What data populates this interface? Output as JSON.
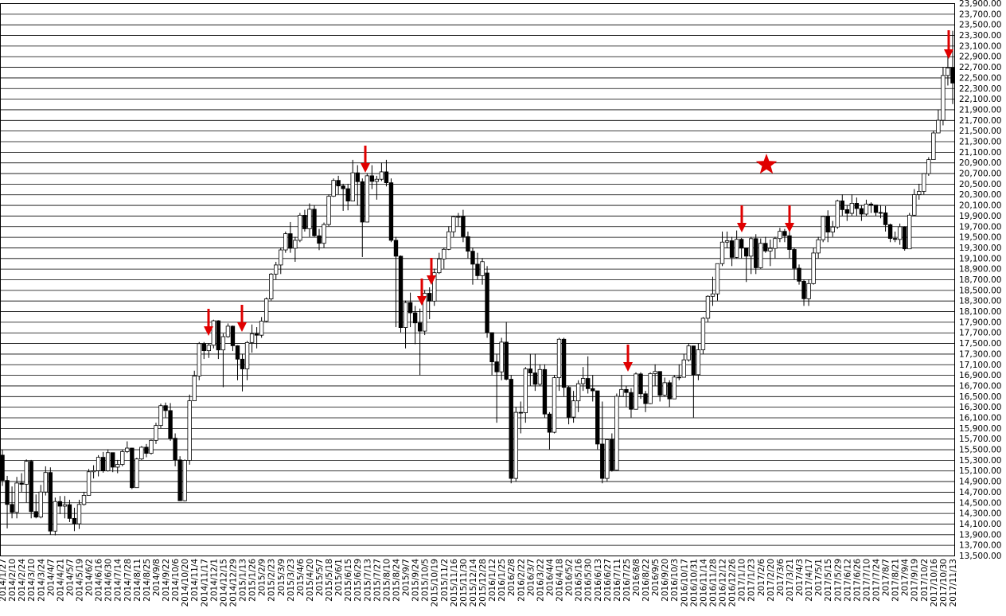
{
  "chart_data": {
    "type": "candlestick",
    "categories": [
      "2014/1/27",
      null,
      "2014/2/10",
      null,
      "2014/2/24",
      null,
      "2014/3/10",
      null,
      "2014/3/24",
      null,
      "2014/4/7",
      null,
      "2014/4/21",
      null,
      "2014/5/7",
      null,
      "2014/5/19",
      null,
      "2014/6/2",
      null,
      "2014/6/16",
      null,
      "2014/6/30",
      null,
      "2014/7/14",
      null,
      "2014/7/28",
      null,
      "2014/8/11",
      null,
      "2014/8/25",
      null,
      "2014/9/8",
      null,
      "2014/9/22",
      null,
      "2014/10/6",
      null,
      "2014/10/20",
      null,
      "2014/11/4",
      null,
      "2014/11/17",
      null,
      "2014/12/1",
      null,
      "2014/12/15",
      null,
      "2014/12/29",
      null,
      "2015/1/13",
      null,
      "2015/1/26",
      null,
      "2015/2/9",
      null,
      "2015/2/23",
      null,
      "2015/3/9",
      null,
      "2015/3/23",
      null,
      "2015/4/6",
      null,
      "2015/4/20",
      null,
      "2015/5/7",
      null,
      "2015/5/18",
      null,
      "2015/6/1",
      null,
      "2015/6/15",
      null,
      "2015/6/29",
      null,
      "2015/7/13",
      null,
      "2015/7/27",
      null,
      "2015/8/10",
      null,
      "2015/8/24",
      null,
      "2015/9/7",
      null,
      "2015/9/24",
      null,
      "2015/10/5",
      null,
      "2015/10/19",
      null,
      "2015/11/2",
      null,
      "2015/11/16",
      null,
      "2015/11/30",
      null,
      "2015/12/14",
      null,
      "2015/12/28",
      null,
      "2016/1/12",
      null,
      "2016/1/25",
      null,
      "2016/2/8",
      null,
      "2016/2/22",
      null,
      "2016/3/7",
      null,
      "2016/3/22",
      null,
      "2016/4/4",
      null,
      "2016/4/18",
      null,
      "2016/5/2",
      null,
      "2016/5/16",
      null,
      "2016/5/30",
      null,
      "2016/6/13",
      null,
      "2016/6/27",
      null,
      "2016/7/11",
      null,
      "2016/7/25",
      null,
      "2016/8/8",
      null,
      "2016/8/22",
      null,
      "2016/9/5",
      null,
      "2016/9/20",
      null,
      "2016/10/3",
      null,
      "2016/10/17",
      null,
      "2016/10/31",
      null,
      "2016/11/14",
      null,
      "2016/11/28",
      null,
      "2016/12/12",
      null,
      "2016/12/26",
      null,
      "2017/1/10",
      null,
      "2017/1/23",
      null,
      "2017/2/6",
      null,
      "2017/2/20",
      null,
      "2017/3/6",
      null,
      "2017/3/21",
      null,
      "2017/4/3",
      null,
      "2017/4/17",
      null,
      "2017/5/1",
      null,
      "2017/5/15",
      null,
      "2017/5/29",
      null,
      "2017/6/12",
      null,
      "2017/6/26",
      null,
      "2017/7/10",
      null,
      "2017/7/24",
      null,
      "2017/8/7",
      null,
      "2017/8/21",
      null,
      "2017/9/4",
      null,
      "2017/9/19",
      null,
      "2017/10/2",
      null,
      "2017/10/16",
      null,
      "2017/10/30",
      null,
      "2017/11/13"
    ],
    "open": [
      15390,
      14914,
      14462,
      14313,
      14865,
      14841,
      15274,
      14327,
      14224,
      14696,
      15063,
      13960,
      14516,
      14429,
      14458,
      14199,
      14097,
      14462,
      14632,
      15077,
      15097,
      15349,
      15095,
      15437,
      15164,
      15215,
      15457,
      15523,
      14778,
      15318,
      15539,
      15424,
      15668,
      15948,
      16321,
      16229,
      15708,
      15300,
      14532,
      15291,
      16413,
      16880,
      17490,
      17357,
      17459,
      17920,
      17371,
      17621,
      17818,
      17450,
      17197,
      17014,
      17511,
      17674,
      17648,
      17913,
      18332,
      18798,
      18971,
      19254,
      19560,
      19285,
      19435,
      19907,
      19652,
      20020,
      19520,
      19379,
      19732,
      20264,
      20563,
      20460,
      20407,
      20174,
      20706,
      20539,
      19779,
      20650,
      20544,
      20585,
      20724,
      20519,
      19435,
      19136,
      17792,
      18264,
      18070,
      17880,
      17725,
      18438,
      18291,
      18825,
      19083,
      19265,
      19596,
      19879,
      19883,
      19504,
      19230,
      18986,
      18769,
      18820,
      17697,
      17147,
      16958,
      17518,
      16819,
      14952,
      16196,
      16188,
      17014,
      16938,
      16724,
      17002,
      16164,
      15821,
      16848,
      17572,
      16666,
      16106,
      16412,
      16736,
      16834,
      16642,
      16601,
      15599,
      14952,
      15682,
      15106,
      16497,
      16627,
      16569,
      16254,
      16919,
      16545,
      16360,
      16925,
      16965,
      16519,
      16754,
      16449,
      16860,
      16856,
      17184,
      17446,
      16905,
      17374,
      17967,
      18381,
      18426,
      18996,
      19401,
      19427,
      19114,
      19454,
      19287,
      19137,
      19467,
      18918,
      19378,
      19234,
      19283,
      19469,
      19604,
      19521,
      19262,
      18909,
      18665,
      18335,
      18620,
      19196,
      19445,
      19883,
      19590,
      19686,
      20177,
      20013,
      19943,
      20132,
      20033,
      19929,
      20118,
      20099,
      19959,
      19952,
      19729,
      19470,
      19452,
      19691,
      19274,
      19909,
      20296,
      20356,
      20690,
      20954,
      21457,
      21696,
      22539,
      22681
    ],
    "high": [
      15490,
      15000,
      14800,
      14980,
      15050,
      15310,
      15300,
      14650,
      14830,
      15180,
      15160,
      14590,
      14620,
      14620,
      14550,
      14400,
      14550,
      14700,
      15130,
      15200,
      15390,
      15450,
      15500,
      15440,
      15300,
      15490,
      15650,
      15530,
      15340,
      15560,
      15600,
      15680,
      16000,
      16360,
      16380,
      16370,
      15800,
      15370,
      15310,
      16530,
      16980,
      17520,
      17520,
      17500,
      17940,
      17930,
      17680,
      17870,
      17830,
      17460,
      17300,
      17540,
      17850,
      17800,
      17990,
      18360,
      18820,
      19030,
      19300,
      19600,
      19780,
      19500,
      19950,
      20010,
      20130,
      20090,
      19650,
      19770,
      20300,
      20600,
      20650,
      20500,
      20500,
      20950,
      20850,
      20600,
      20700,
      20850,
      20650,
      20900,
      20950,
      20600,
      19500,
      19150,
      18300,
      18450,
      18200,
      18150,
      18500,
      18550,
      18900,
      19200,
      19300,
      19700,
      19900,
      19950,
      20010,
      19600,
      19300,
      19200,
      19100,
      18950,
      17700,
      17300,
      17600,
      17900,
      16900,
      16300,
      16400,
      17050,
      17300,
      17300,
      17100,
      17100,
      16200,
      16900,
      17600,
      17600,
      16700,
      16600,
      16800,
      17050,
      17250,
      16900,
      16600,
      16400,
      15700,
      15800,
      16550,
      16900,
      16700,
      16650,
      16950,
      16950,
      16600,
      16950,
      17100,
      16970,
      16850,
      16800,
      16900,
      17100,
      17300,
      17500,
      17450,
      17500,
      17990,
      18400,
      18750,
      19000,
      19600,
      19600,
      19500,
      19620,
      19480,
      19300,
      19500,
      19550,
      19470,
      19500,
      19450,
      19500,
      19670,
      19650,
      19600,
      19300,
      18980,
      18700,
      18700,
      19300,
      19500,
      19900,
      20000,
      19800,
      20200,
      20300,
      20100,
      20300,
      20240,
      20100,
      20200,
      20150,
      20100,
      20100,
      20080,
      19750,
      19600,
      19750,
      19700,
      19950,
      20400,
      20500,
      20700,
      21000,
      21500,
      21900,
      22700,
      23000,
      23380
    ],
    "low": [
      14810,
      14010,
      14200,
      14200,
      14700,
      14500,
      14200,
      14200,
      14200,
      14630,
      13890,
      13880,
      14280,
      14200,
      14130,
      13960,
      14000,
      14440,
      14630,
      14950,
      14990,
      15060,
      15080,
      15070,
      15050,
      15180,
      15430,
      14750,
      14780,
      15300,
      15350,
      15400,
      15600,
      15900,
      16100,
      15660,
      15180,
      14530,
      14520,
      15210,
      16410,
      16800,
      17200,
      17220,
      17400,
      17200,
      16670,
      17600,
      17350,
      16800,
      16590,
      16800,
      17320,
      17400,
      17600,
      17900,
      18300,
      18700,
      18800,
      19200,
      19200,
      19030,
      19400,
      19600,
      19500,
      19500,
      19250,
      19300,
      19700,
      20250,
      20300,
      19990,
      20000,
      20170,
      20090,
      19120,
      19800,
      20400,
      20200,
      20550,
      20450,
      19400,
      17800,
      17700,
      17400,
      17800,
      17480,
      16900,
      17650,
      17950,
      18200,
      18800,
      18900,
      19250,
      19500,
      19700,
      19400,
      19100,
      18600,
      18700,
      18600,
      17600,
      16900,
      16000,
      16800,
      16800,
      14860,
      14900,
      15800,
      16000,
      16700,
      16600,
      16700,
      16100,
      15500,
      15800,
      16600,
      16500,
      15970,
      16000,
      16200,
      16600,
      16550,
      16400,
      15500,
      14860,
      14900,
      15080,
      15100,
      16490,
      16300,
      16100,
      16250,
      16450,
      16200,
      16350,
      16700,
      16400,
      16500,
      16300,
      16450,
      16800,
      16850,
      17150,
      16100,
      16800,
      17300,
      17900,
      18200,
      18300,
      18950,
      19300,
      18950,
      19100,
      19100,
      18650,
      18800,
      18800,
      18900,
      19200,
      18950,
      19100,
      19400,
      19400,
      19100,
      18700,
      18600,
      18200,
      18200,
      18600,
      19100,
      19400,
      19400,
      19500,
      19650,
      19900,
      19800,
      19900,
      19900,
      19800,
      19900,
      19950,
      19900,
      19850,
      19600,
      19400,
      19400,
      19350,
      19240,
      19270,
      19900,
      20200,
      20300,
      20650,
      20950,
      21450,
      21600,
      22350,
      22000
    ],
    "close": [
      14914,
      14462,
      14313,
      14865,
      14841,
      15274,
      14327,
      14224,
      14696,
      15063,
      13960,
      14516,
      14429,
      14458,
      14199,
      14097,
      14462,
      14632,
      15077,
      15097,
      15349,
      15095,
      15437,
      15164,
      15215,
      15457,
      15523,
      14778,
      15318,
      15539,
      15424,
      15668,
      15948,
      16321,
      16229,
      15708,
      15300,
      14532,
      15291,
      16413,
      16880,
      17490,
      17357,
      17459,
      17920,
      17371,
      17621,
      17818,
      17450,
      17197,
      17014,
      17511,
      17674,
      17648,
      17913,
      18332,
      18798,
      18971,
      19254,
      19560,
      19285,
      19435,
      19907,
      19652,
      20020,
      19520,
      19379,
      19732,
      20264,
      20563,
      20460,
      20407,
      20174,
      20706,
      20539,
      19779,
      20650,
      20544,
      20585,
      20724,
      20519,
      19435,
      19136,
      17792,
      18264,
      18070,
      17880,
      17725,
      18438,
      18291,
      18825,
      19083,
      19265,
      19596,
      19879,
      19883,
      19504,
      19230,
      18986,
      18769,
      19033,
      17697,
      17147,
      16958,
      17518,
      16819,
      14952,
      16196,
      16188,
      17014,
      16938,
      16724,
      17002,
      16164,
      15821,
      16848,
      17572,
      16666,
      16106,
      16412,
      16736,
      16834,
      16642,
      16601,
      15599,
      14952,
      15682,
      15106,
      16497,
      16627,
      16569,
      16254,
      16919,
      16545,
      16360,
      16925,
      16965,
      16519,
      16754,
      16449,
      16860,
      16856,
      17184,
      17446,
      16905,
      17374,
      17967,
      18381,
      18426,
      18996,
      19401,
      19427,
      19114,
      19454,
      19287,
      19137,
      19467,
      18918,
      19378,
      19234,
      19283,
      19469,
      19604,
      19521,
      19262,
      18909,
      18665,
      18335,
      18620,
      19196,
      19445,
      19883,
      19590,
      19686,
      20177,
      20013,
      19943,
      20132,
      20033,
      19929,
      20118,
      20099,
      19959,
      19952,
      19729,
      19470,
      19452,
      19691,
      19274,
      19909,
      20296,
      20356,
      20690,
      20954,
      21457,
      21696,
      22539,
      22681,
      22396
    ],
    "up_color": "#ffffff",
    "down_color": "#000000",
    "ylim": [
      13500,
      23900
    ],
    "yticks": [
      {
        "value": 13500,
        "label": "13,500.00"
      },
      {
        "value": 13700,
        "label": "13,700.00"
      },
      {
        "value": 13900,
        "label": "13,900.00"
      },
      {
        "value": 14100,
        "label": "14,100.00"
      },
      {
        "value": 14300,
        "label": "14,300.00"
      },
      {
        "value": 14500,
        "label": "14,500.00"
      },
      {
        "value": 14700,
        "label": "14,700.00"
      },
      {
        "value": 14900,
        "label": "14,900.00"
      },
      {
        "value": 15100,
        "label": "15,100.00"
      },
      {
        "value": 15300,
        "label": "15,300.00"
      },
      {
        "value": 15500,
        "label": "15,500.00"
      },
      {
        "value": 15700,
        "label": "15,700.00"
      },
      {
        "value": 15900,
        "label": "15,900.00"
      },
      {
        "value": 16100,
        "label": "16,100.00"
      },
      {
        "value": 16300,
        "label": "16,300.00"
      },
      {
        "value": 16500,
        "label": "16,500.00"
      },
      {
        "value": 16700,
        "label": "16,700.00"
      },
      {
        "value": 16900,
        "label": "16,900.00"
      },
      {
        "value": 17100,
        "label": "17,100.00"
      },
      {
        "value": 17300,
        "label": "17,300.00"
      },
      {
        "value": 17500,
        "label": "17,500.00"
      },
      {
        "value": 17700,
        "label": "17,700.00"
      },
      {
        "value": 17900,
        "label": "17,900.00"
      },
      {
        "value": 18100,
        "label": "18,100.00"
      },
      {
        "value": 18300,
        "label": "18,300.00"
      },
      {
        "value": 18500,
        "label": "18,500.00"
      },
      {
        "value": 18700,
        "label": "18,700.00"
      },
      {
        "value": 18900,
        "label": "18,900.00"
      },
      {
        "value": 19100,
        "label": "19,100.00"
      },
      {
        "value": 19300,
        "label": "19,300.00"
      },
      {
        "value": 19500,
        "label": "19,500.00"
      },
      {
        "value": 19700,
        "label": "19,700.00"
      },
      {
        "value": 19900,
        "label": "19,900.00"
      },
      {
        "value": 20100,
        "label": "20,100.00"
      },
      {
        "value": 20300,
        "label": "20,300.00"
      },
      {
        "value": 20500,
        "label": "20,500.00"
      },
      {
        "value": 20700,
        "label": "20,700.00"
      },
      {
        "value": 20900,
        "label": "20,900.00"
      },
      {
        "value": 21100,
        "label": "21,100.00"
      },
      {
        "value": 21300,
        "label": "21,300.00"
      },
      {
        "value": 21500,
        "label": "21,500.00"
      },
      {
        "value": 21700,
        "label": "21,700.00"
      },
      {
        "value": 21900,
        "label": "21,900.00"
      },
      {
        "value": 22100,
        "label": "22,100.00"
      },
      {
        "value": 22300,
        "label": "22,300.00"
      },
      {
        "value": 22500,
        "label": "22,500.00"
      },
      {
        "value": 22700,
        "label": "22,700.00"
      },
      {
        "value": 22900,
        "label": "22,900.00"
      },
      {
        "value": 23100,
        "label": "23,100.00"
      },
      {
        "value": 23300,
        "label": "23,300.00"
      },
      {
        "value": 23500,
        "label": "23,500.00"
      },
      {
        "value": 23700,
        "label": "23,700.00"
      },
      {
        "value": 23900,
        "label": "23,900.00"
      }
    ],
    "grid": true
  }
}
